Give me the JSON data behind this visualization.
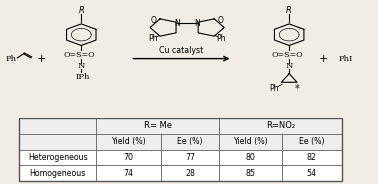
{
  "table_headers_row1_left": "R= Me",
  "table_headers_row1_right": "R=NO₂",
  "table_headers_row2": [
    "",
    "Yield (%)",
    "Ee (%)",
    "Yield (%)",
    "Ee (%)"
  ],
  "table_data": [
    [
      "Heterogeneous",
      "70",
      "77",
      "80",
      "82"
    ],
    [
      "Homogeneous",
      "74",
      "28",
      "85",
      "54"
    ]
  ],
  "reaction_text": "Cu catalyst",
  "bg_color": "#f2ede4",
  "table_bg": "#ffffff",
  "border_color": "#555555",
  "fs": 6.0
}
